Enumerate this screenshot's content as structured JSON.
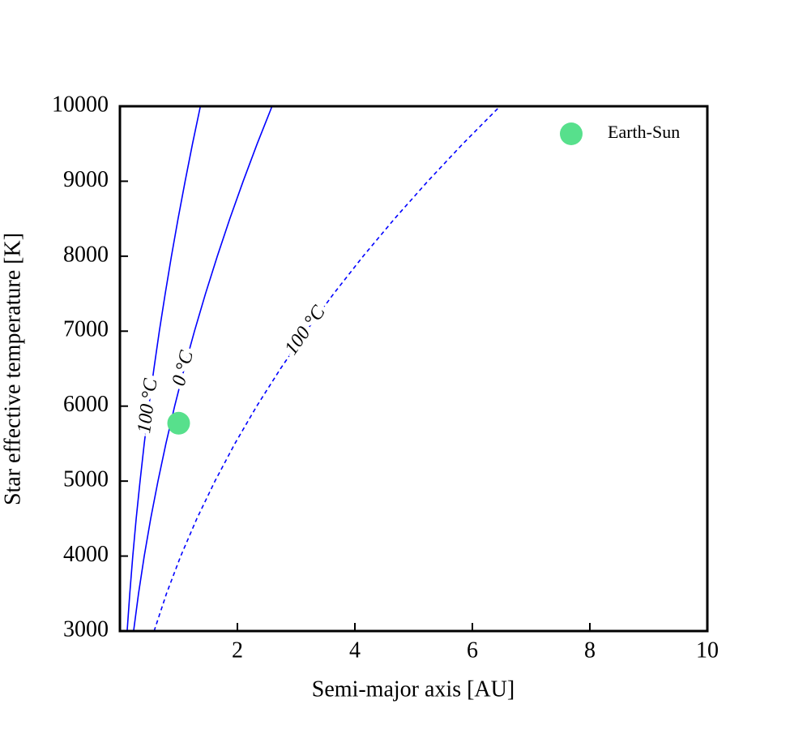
{
  "chart_data": {
    "type": "contour",
    "xlabel": "Semi-major axis [AU]",
    "ylabel": "Star effective temperature [K]",
    "xlim": [
      0,
      10
    ],
    "ylim": [
      3000,
      10000
    ],
    "xticks": [
      2,
      4,
      6,
      8,
      10
    ],
    "yticks": [
      3000,
      4000,
      5000,
      6000,
      7000,
      8000,
      9000,
      10000
    ],
    "legend_loc": "upper right",
    "contours": [
      {
        "label": "100 °C",
        "color": "#0000ff",
        "linestyle": "solid",
        "x": [
          0.123,
          0.168,
          0.219,
          0.277,
          0.343,
          0.414,
          0.493,
          0.579,
          0.671,
          0.771,
          0.877,
          0.99,
          1.11,
          1.236,
          1.37
        ],
        "y": [
          3000,
          3500,
          4000,
          4500,
          5000,
          5500,
          6000,
          6500,
          7000,
          7500,
          8000,
          8500,
          9000,
          9500,
          10000
        ]
      },
      {
        "label": "0 °C",
        "color": "#0000ff",
        "linestyle": "solid",
        "x": [
          0.233,
          0.317,
          0.414,
          0.524,
          0.648,
          0.783,
          0.932,
          1.094,
          1.269,
          1.457,
          1.658,
          1.871,
          2.098,
          2.337,
          2.59
        ],
        "y": [
          3000,
          3500,
          4000,
          4500,
          5000,
          5500,
          6000,
          6500,
          7000,
          7500,
          8000,
          8500,
          9000,
          9500,
          10000
        ]
      },
      {
        "label": "100 °C",
        "color": "#0000ff",
        "linestyle": "dashed",
        "x": [
          0.582,
          0.793,
          1.035,
          1.31,
          1.618,
          1.957,
          2.329,
          2.734,
          3.17,
          3.639,
          4.141,
          4.675,
          5.241,
          5.839,
          6.47
        ],
        "y": [
          3000,
          3500,
          4000,
          4500,
          5000,
          5500,
          6000,
          6500,
          7000,
          7500,
          8000,
          8500,
          9000,
          9500,
          10000
        ]
      }
    ],
    "points": [
      {
        "name": "Earth-Sun",
        "color": "#57e08c",
        "x": [
          1
        ],
        "y": [
          5772
        ]
      }
    ]
  }
}
